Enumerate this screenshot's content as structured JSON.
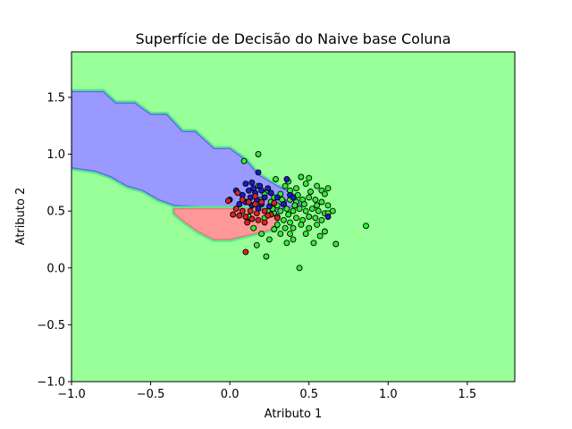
{
  "chart_data": {
    "type": "scatter",
    "title": "Superfície de Decisão do Naive base Coluna",
    "xlabel": "Atributo 1",
    "ylabel": "Atributo 2",
    "xlim": [
      -1.0,
      1.8
    ],
    "ylim": [
      -1.0,
      1.9
    ],
    "xticks": [
      -1.0,
      -0.5,
      0.0,
      0.5,
      1.0,
      1.5
    ],
    "xtick_labels": [
      "−1.0",
      "−0.5",
      "0.0",
      "0.5",
      "1.0",
      "1.5"
    ],
    "yticks": [
      -1.0,
      -0.5,
      0.0,
      0.5,
      1.0,
      1.5
    ],
    "ytick_labels": [
      "−1.0",
      "−0.5",
      "0.0",
      "0.5",
      "1.0",
      "1.5"
    ],
    "grid": false,
    "legend": "none",
    "colors": {
      "background_region": "#99ff99",
      "blue_region": "#9999ff",
      "red_region": "#ff9999",
      "green_points": "#33ee33",
      "blue_points": "#1a1acc",
      "red_points": "#dd2222",
      "point_edge": "#000000"
    },
    "regions": [
      {
        "class": "blue",
        "polygon": [
          [
            -1.0,
            1.55
          ],
          [
            -0.8,
            1.55
          ],
          [
            -0.72,
            1.45
          ],
          [
            -0.6,
            1.45
          ],
          [
            -0.5,
            1.35
          ],
          [
            -0.4,
            1.35
          ],
          [
            -0.3,
            1.2
          ],
          [
            -0.22,
            1.2
          ],
          [
            -0.1,
            1.05
          ],
          [
            0.0,
            1.05
          ],
          [
            0.1,
            0.95
          ],
          [
            0.18,
            0.82
          ],
          [
            0.3,
            0.72
          ],
          [
            0.4,
            0.65
          ],
          [
            0.45,
            0.55
          ],
          [
            0.25,
            0.5
          ],
          [
            -0.35,
            0.55
          ],
          [
            -0.45,
            0.6
          ],
          [
            -0.55,
            0.68
          ],
          [
            -0.65,
            0.72
          ],
          [
            -0.75,
            0.8
          ],
          [
            -0.85,
            0.85
          ],
          [
            -1.0,
            0.88
          ]
        ]
      },
      {
        "class": "red",
        "polygon": [
          [
            -0.35,
            0.52
          ],
          [
            0.2,
            0.52
          ],
          [
            0.3,
            0.45
          ],
          [
            0.3,
            0.35
          ],
          [
            0.15,
            0.3
          ],
          [
            0.0,
            0.25
          ],
          [
            -0.1,
            0.25
          ],
          [
            -0.2,
            0.32
          ],
          [
            -0.28,
            0.4
          ],
          [
            -0.35,
            0.48
          ]
        ]
      }
    ],
    "series": [
      {
        "class": "green",
        "points": [
          [
            0.09,
            0.94
          ],
          [
            0.18,
            1.0
          ],
          [
            0.29,
            0.78
          ],
          [
            0.37,
            0.76
          ],
          [
            0.45,
            0.8
          ],
          [
            0.5,
            0.79
          ],
          [
            0.48,
            0.74
          ],
          [
            0.42,
            0.7
          ],
          [
            0.35,
            0.72
          ],
          [
            0.55,
            0.72
          ],
          [
            0.58,
            0.68
          ],
          [
            0.62,
            0.7
          ],
          [
            0.38,
            0.68
          ],
          [
            0.32,
            0.65
          ],
          [
            0.28,
            0.62
          ],
          [
            0.22,
            0.65
          ],
          [
            0.2,
            0.6
          ],
          [
            0.26,
            0.58
          ],
          [
            0.3,
            0.55
          ],
          [
            0.34,
            0.58
          ],
          [
            0.38,
            0.6
          ],
          [
            0.42,
            0.58
          ],
          [
            0.46,
            0.6
          ],
          [
            0.5,
            0.62
          ],
          [
            0.54,
            0.6
          ],
          [
            0.58,
            0.58
          ],
          [
            0.62,
            0.55
          ],
          [
            0.65,
            0.5
          ],
          [
            0.6,
            0.48
          ],
          [
            0.56,
            0.5
          ],
          [
            0.52,
            0.52
          ],
          [
            0.48,
            0.5
          ],
          [
            0.44,
            0.52
          ],
          [
            0.4,
            0.5
          ],
          [
            0.36,
            0.52
          ],
          [
            0.32,
            0.5
          ],
          [
            0.28,
            0.48
          ],
          [
            0.24,
            0.5
          ],
          [
            0.3,
            0.45
          ],
          [
            0.34,
            0.42
          ],
          [
            0.38,
            0.4
          ],
          [
            0.42,
            0.44
          ],
          [
            0.46,
            0.42
          ],
          [
            0.5,
            0.45
          ],
          [
            0.54,
            0.44
          ],
          [
            0.58,
            0.42
          ],
          [
            0.35,
            0.35
          ],
          [
            0.4,
            0.35
          ],
          [
            0.45,
            0.38
          ],
          [
            0.5,
            0.35
          ],
          [
            0.55,
            0.38
          ],
          [
            0.6,
            0.32
          ],
          [
            0.38,
            0.3
          ],
          [
            0.32,
            0.3
          ],
          [
            0.28,
            0.34
          ],
          [
            0.2,
            0.3
          ],
          [
            0.15,
            0.35
          ],
          [
            0.25,
            0.25
          ],
          [
            0.36,
            0.22
          ],
          [
            0.53,
            0.22
          ],
          [
            0.67,
            0.21
          ],
          [
            0.17,
            0.2
          ],
          [
            0.23,
            0.1
          ],
          [
            0.44,
            0.0
          ],
          [
            0.86,
            0.37
          ],
          [
            0.62,
            0.48
          ],
          [
            0.55,
            0.55
          ],
          [
            0.47,
            0.56
          ],
          [
            0.41,
            0.55
          ],
          [
            0.37,
            0.47
          ],
          [
            0.27,
            0.52
          ],
          [
            0.33,
            0.6
          ],
          [
            0.43,
            0.64
          ],
          [
            0.51,
            0.67
          ],
          [
            0.6,
            0.65
          ],
          [
            0.22,
            0.44
          ],
          [
            0.57,
            0.28
          ],
          [
            0.4,
            0.25
          ],
          [
            0.48,
            0.3
          ],
          [
            0.3,
            0.38
          ],
          [
            0.12,
            0.45
          ],
          [
            0.18,
            0.72
          ],
          [
            0.24,
            0.68
          ]
        ]
      },
      {
        "class": "blue",
        "points": [
          [
            0.18,
            0.84
          ],
          [
            0.1,
            0.74
          ],
          [
            0.14,
            0.75
          ],
          [
            0.19,
            0.72
          ],
          [
            0.24,
            0.7
          ],
          [
            0.12,
            0.68
          ],
          [
            0.16,
            0.66
          ],
          [
            0.2,
            0.68
          ],
          [
            0.08,
            0.64
          ],
          [
            0.13,
            0.62
          ],
          [
            0.17,
            0.6
          ],
          [
            0.22,
            0.62
          ],
          [
            0.26,
            0.66
          ],
          [
            0.38,
            0.64
          ],
          [
            0.4,
            0.62
          ],
          [
            0.36,
            0.78
          ],
          [
            0.1,
            0.58
          ],
          [
            0.06,
            0.56
          ],
          [
            0.14,
            0.55
          ],
          [
            0.2,
            0.56
          ],
          [
            0.25,
            0.54
          ],
          [
            0.3,
            0.62
          ],
          [
            0.34,
            0.56
          ],
          [
            0.0,
            0.6
          ],
          [
            0.04,
            0.68
          ],
          [
            0.62,
            0.45
          ],
          [
            0.15,
            0.7
          ],
          [
            0.18,
            0.52
          ]
        ]
      },
      {
        "class": "red",
        "points": [
          [
            0.05,
            0.66
          ],
          [
            0.08,
            0.6
          ],
          [
            0.12,
            0.58
          ],
          [
            0.16,
            0.63
          ],
          [
            0.2,
            0.58
          ],
          [
            0.04,
            0.52
          ],
          [
            0.08,
            0.5
          ],
          [
            0.13,
            0.5
          ],
          [
            0.17,
            0.48
          ],
          [
            0.22,
            0.5
          ],
          [
            0.26,
            0.47
          ],
          [
            0.06,
            0.46
          ],
          [
            0.1,
            0.45
          ],
          [
            0.14,
            0.43
          ],
          [
            0.18,
            0.42
          ],
          [
            0.22,
            0.4
          ],
          [
            0.3,
            0.44
          ],
          [
            0.02,
            0.47
          ],
          [
            0.16,
            0.56
          ],
          [
            0.24,
            0.46
          ],
          [
            0.11,
            0.4
          ],
          [
            0.28,
            0.57
          ],
          [
            0.1,
            0.14
          ],
          [
            -0.01,
            0.59
          ]
        ]
      }
    ]
  }
}
